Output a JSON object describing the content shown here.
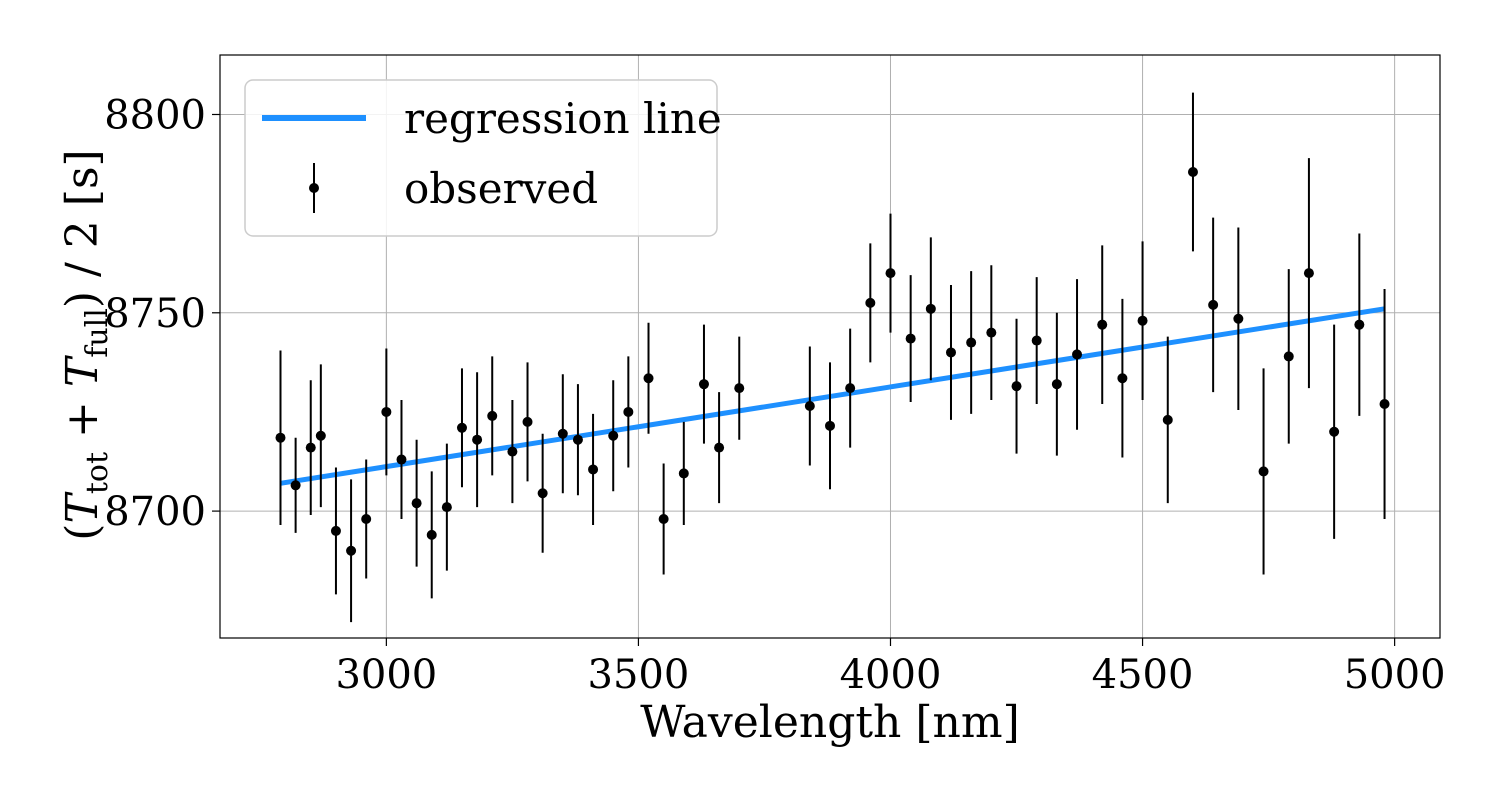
{
  "chart_data": {
    "type": "scatter",
    "xlabel": "Wavelength [nm]",
    "ylabel_parts": {
      "open": "(",
      "t1": "T",
      "sub1": "tot",
      "plus": " + ",
      "t2": "T",
      "sub2": "full",
      "close": ") / 2  [s]"
    },
    "xlim": [
      2670,
      5090
    ],
    "ylim": [
      8668,
      8815
    ],
    "x_ticks": [
      3000,
      3500,
      4000,
      4500,
      5000
    ],
    "x_tick_labels": [
      "3000",
      "3500",
      "4000",
      "4500",
      "5000"
    ],
    "y_ticks": [
      8700,
      8750,
      8800
    ],
    "y_tick_labels": [
      "8700",
      "8750",
      "8800"
    ],
    "grid": true,
    "legend": {
      "position": "top-left",
      "entries": [
        "regression line",
        "observed"
      ]
    },
    "colors": {
      "regression": "#1e90ff",
      "observed": "#000000",
      "grid": "#b0b0b0"
    },
    "series": [
      {
        "name": "regression line",
        "kind": "line",
        "x": [
          2790,
          4980
        ],
        "y": [
          8707,
          8751
        ]
      },
      {
        "name": "observed",
        "kind": "errorbar",
        "x": [
          2790,
          2820,
          2850,
          2870,
          2900,
          2930,
          2960,
          3000,
          3030,
          3060,
          3090,
          3120,
          3150,
          3180,
          3210,
          3250,
          3280,
          3310,
          3350,
          3380,
          3410,
          3450,
          3480,
          3520,
          3550,
          3590,
          3630,
          3660,
          3700,
          3840,
          3880,
          3920,
          3960,
          4000,
          4040,
          4080,
          4120,
          4160,
          4200,
          4250,
          4290,
          4330,
          4370,
          4420,
          4460,
          4500,
          4550,
          4600,
          4640,
          4690,
          4740,
          4790,
          4830,
          4880,
          4930,
          4980
        ],
        "y": [
          8718.5,
          8706.5,
          8716,
          8719,
          8695,
          8690,
          8698,
          8725,
          8713,
          8702,
          8694,
          8701,
          8721,
          8718,
          8724,
          8715,
          8722.5,
          8704.5,
          8719.5,
          8718,
          8710.5,
          8719,
          8725,
          8733.5,
          8698,
          8709.5,
          8732,
          8716,
          8731,
          8726.5,
          8721.5,
          8731,
          8752.5,
          8760,
          8743.5,
          8751,
          8740,
          8742.5,
          8745,
          8731.5,
          8743,
          8732,
          8739.5,
          8747,
          8733.5,
          8748,
          8723,
          8785.5,
          8752,
          8748.5,
          8710,
          8739,
          8760,
          8720,
          8747,
          8727
        ],
        "err": [
          22,
          12,
          17,
          18,
          16,
          18,
          15,
          16,
          15,
          16,
          16,
          16,
          15,
          17,
          15,
          13,
          15,
          15,
          15,
          14,
          14,
          14,
          14,
          14,
          14,
          13,
          15,
          14,
          13,
          15,
          16,
          15,
          15,
          15,
          16,
          18,
          17,
          18,
          17,
          17,
          16,
          18,
          19,
          20,
          20,
          20,
          21,
          20,
          22,
          23,
          26,
          22,
          29,
          27,
          23,
          29
        ]
      }
    ]
  }
}
